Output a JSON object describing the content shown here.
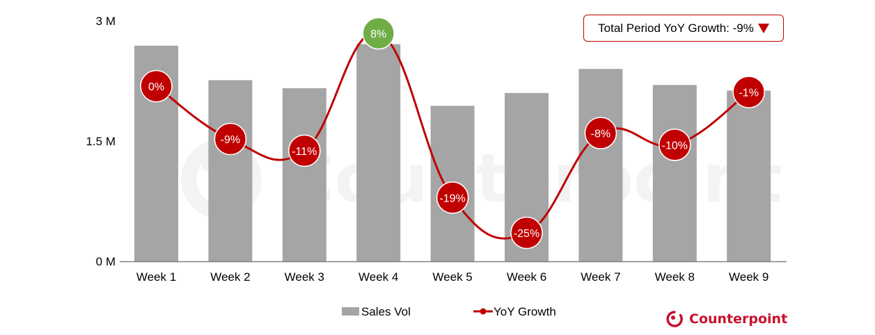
{
  "chart_data": {
    "type": "bar+line",
    "title": "",
    "categories": [
      "Week 1",
      "Week 2",
      "Week 3",
      "Week 4",
      "Week 5",
      "Week 6",
      "Week 7",
      "Week 8",
      "Week 9"
    ],
    "series": [
      {
        "name": "Sales Vol",
        "type": "bar",
        "unit": "M",
        "color": "#a5a5a5",
        "values": [
          2.69,
          2.26,
          2.16,
          2.71,
          1.94,
          2.1,
          2.4,
          2.2,
          2.13
        ]
      },
      {
        "name": "YoY Growth",
        "type": "line",
        "smooth": true,
        "unit": "%",
        "color": "#c00000",
        "values": [
          0,
          -9,
          -11,
          8,
          -19,
          -25,
          -8,
          -10,
          -1
        ],
        "labels": [
          "0%",
          "-9%",
          "-11%",
          "8%",
          "-19%",
          "-25%",
          "-8%",
          "-10%",
          "-1%"
        ],
        "marker_colors": [
          "#c00000",
          "#c00000",
          "#c00000",
          "#70ad47",
          "#c00000",
          "#c00000",
          "#c00000",
          "#c00000",
          "#c00000"
        ]
      }
    ],
    "xlabel": "",
    "ylabel": "",
    "ylim": [
      0,
      3
    ],
    "yticks": [
      0,
      1.5,
      3
    ],
    "ytick_labels": [
      "0 M",
      "1.5 M",
      "3 M"
    ],
    "grid": false,
    "legend_position": "bottom",
    "annotation": {
      "text": "Total Period YoY Growth: -9%",
      "indicator": "down-triangle",
      "color": "#c00000"
    }
  },
  "legend": {
    "sales": "Sales Vol",
    "growth": "YoY Growth"
  },
  "annotation": {
    "total_label": "Total Period YoY Growth: -9%"
  },
  "brand": {
    "name": "Counterpoint",
    "watermark": "Counterpoint",
    "color": "#c8102e"
  }
}
